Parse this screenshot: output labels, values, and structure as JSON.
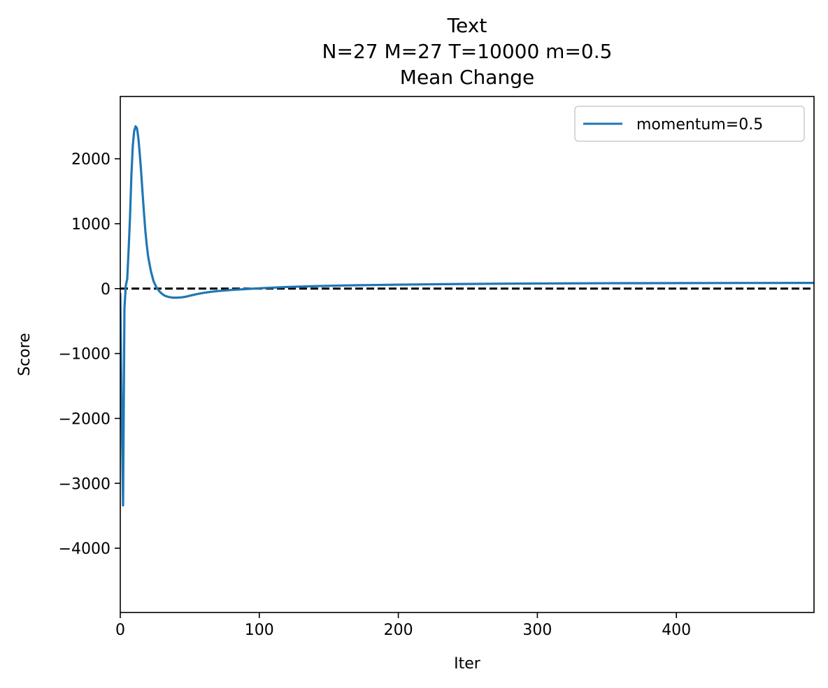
{
  "chart_data": {
    "type": "line",
    "title": "Text\nN=27 M=27 T=10000 m=0.5\nMean Change",
    "title_lines": [
      "Text",
      "N=27 M=27 T=10000 m=0.5",
      "Mean Change"
    ],
    "xlabel": "Iter",
    "ylabel": "Score",
    "xlim": [
      0,
      499
    ],
    "ylim": [
      -4990,
      2960
    ],
    "xticks": [
      0,
      100,
      200,
      300,
      400
    ],
    "yticks": [
      -4000,
      -3000,
      -2000,
      -1000,
      0,
      1000,
      2000
    ],
    "xtick_labels": [
      "0",
      "100",
      "200",
      "300",
      "400"
    ],
    "ytick_labels": [
      "−4000",
      "−3000",
      "−2000",
      "−1000",
      "0",
      "1000",
      "2000"
    ],
    "grid": false,
    "legend": {
      "position": "top-right"
    },
    "reference_line": {
      "y": 0,
      "style": "dashed",
      "color": "#000000"
    },
    "series": [
      {
        "name": "momentum=0.5",
        "color": "#1f77b4",
        "x": [
          0,
          1,
          2,
          3,
          4,
          5,
          6,
          7,
          8,
          9,
          10,
          11,
          12,
          13,
          14,
          15,
          16,
          17,
          18,
          19,
          20,
          22,
          24,
          26,
          28,
          30,
          32,
          35,
          38,
          41,
          44,
          47,
          50,
          55,
          60,
          65,
          70,
          80,
          90,
          100,
          110,
          120,
          140,
          160,
          180,
          200,
          225,
          250,
          275,
          300,
          325,
          350,
          375,
          400,
          425,
          450,
          475,
          499
        ],
        "y": [
          -80,
          -1850,
          -3340,
          -300,
          50,
          150,
          600,
          1100,
          1750,
          2200,
          2430,
          2500,
          2470,
          2320,
          2080,
          1800,
          1480,
          1180,
          900,
          680,
          500,
          270,
          110,
          20,
          -40,
          -80,
          -110,
          -130,
          -140,
          -140,
          -135,
          -125,
          -110,
          -85,
          -65,
          -50,
          -38,
          -20,
          -8,
          5,
          15,
          25,
          38,
          48,
          55,
          61,
          67,
          72,
          76,
          79,
          81,
          83,
          84,
          85,
          86,
          87,
          87,
          88
        ]
      }
    ]
  }
}
